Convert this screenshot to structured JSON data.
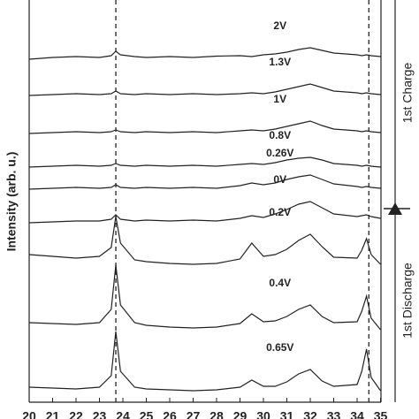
{
  "chart_data": {
    "type": "line",
    "ylabel": "Intensity (arb. u.)",
    "x": [
      20,
      21,
      22,
      23,
      23.5,
      23.7,
      23.9,
      24.5,
      25,
      26,
      27,
      28,
      29,
      29.5,
      30,
      30.5,
      31,
      31.5,
      32,
      32.5,
      33,
      34,
      34.2,
      34.4,
      34.6,
      35
    ],
    "xlim": [
      20,
      35
    ],
    "xticks": [
      20,
      21,
      22,
      23,
      24,
      25,
      26,
      27,
      28,
      29,
      30,
      31,
      32,
      33,
      34,
      35
    ],
    "ylim": [
      0,
      91
    ],
    "vlines": [
      23.7,
      34.5
    ],
    "series": [
      {
        "name": "2V",
        "color": "#222222",
        "values": [
          77.6,
          78,
          78.2,
          78,
          78.4,
          79.4,
          78.6,
          78.2,
          78,
          78.2,
          78,
          78.3,
          78.4,
          78.2,
          78.6,
          78.8,
          79.2,
          79.8,
          80.2,
          79.6,
          79,
          78.6,
          78.4,
          78.6,
          78.4,
          78.2
        ]
      },
      {
        "name": "1.3V",
        "color": "#222222",
        "values": [
          69.4,
          69.6,
          69.8,
          69.6,
          69.8,
          70.4,
          69.8,
          69.6,
          69.8,
          69.6,
          69.8,
          69.6,
          69.8,
          70,
          69.8,
          70.2,
          70.8,
          71.4,
          72,
          71.2,
          70.4,
          70,
          69.8,
          70,
          69.8,
          69.6
        ]
      },
      {
        "name": "1V",
        "color": "#222222",
        "values": [
          60.8,
          61,
          61.2,
          61,
          61.2,
          61.6,
          61.2,
          61,
          61.2,
          61,
          61.2,
          61,
          61.4,
          61.6,
          61.4,
          61.8,
          62.4,
          63,
          63.6,
          62.6,
          61.8,
          61.4,
          61.2,
          61.4,
          61.2,
          61
        ]
      },
      {
        "name": "0.8V",
        "color": "#222222",
        "values": [
          53.2,
          53.4,
          53.6,
          53.4,
          53.6,
          54,
          53.6,
          53.4,
          53.6,
          53.4,
          53.6,
          53.4,
          53.8,
          54,
          53.8,
          54.2,
          54.8,
          55.2,
          55.4,
          54.8,
          54,
          53.6,
          53.4,
          53.6,
          53.4,
          53.2
        ]
      },
      {
        "name": "0.26V",
        "color": "#222222",
        "values": [
          48.2,
          48.4,
          48.6,
          48.4,
          48.6,
          49.2,
          48.6,
          48.4,
          48.6,
          48.4,
          48.6,
          48.4,
          49,
          49.6,
          49.2,
          49.6,
          50.4,
          51,
          51.4,
          50.4,
          49.4,
          48.8,
          48.6,
          48.8,
          48.6,
          48.4
        ]
      },
      {
        "name": "0V",
        "color": "#222222",
        "values": [
          40.6,
          40.8,
          41,
          41,
          41.4,
          42.4,
          41.4,
          41,
          41.2,
          41,
          41.2,
          41,
          41.6,
          42.2,
          41.8,
          42.6,
          43.6,
          44.8,
          45.4,
          44,
          42.6,
          42,
          42.2,
          42.4,
          42,
          41.6
        ]
      },
      {
        "name": "0.2V",
        "color": "#222222",
        "values": [
          33.4,
          33,
          32.6,
          33,
          35,
          42,
          36,
          32.2,
          31.8,
          31.4,
          31.2,
          31.4,
          32.4,
          36,
          33,
          33.4,
          34.6,
          36.6,
          38,
          35.2,
          32.8,
          32.6,
          34.4,
          37,
          33.4,
          31.2
        ]
      },
      {
        "name": "0.4V",
        "color": "#222222",
        "values": [
          18,
          17.8,
          17.6,
          18,
          21,
          31,
          22,
          18,
          17.4,
          17,
          16.8,
          17,
          17.8,
          20,
          18.2,
          18.4,
          19.4,
          21,
          22,
          19.4,
          18,
          18.2,
          20.6,
          24,
          19,
          16.4
        ]
      },
      {
        "name": "0.65V",
        "color": "#222222",
        "values": [
          3.4,
          3.2,
          3,
          3.4,
          6,
          16,
          7,
          3.4,
          3,
          2.8,
          2.6,
          2.8,
          3.4,
          5,
          3.6,
          3.6,
          4.6,
          6.4,
          7.4,
          4.8,
          3.6,
          4,
          7,
          12,
          5.6,
          2.6
        ]
      }
    ],
    "side_labels": [
      "1st Charge",
      "1st Discharge"
    ]
  }
}
